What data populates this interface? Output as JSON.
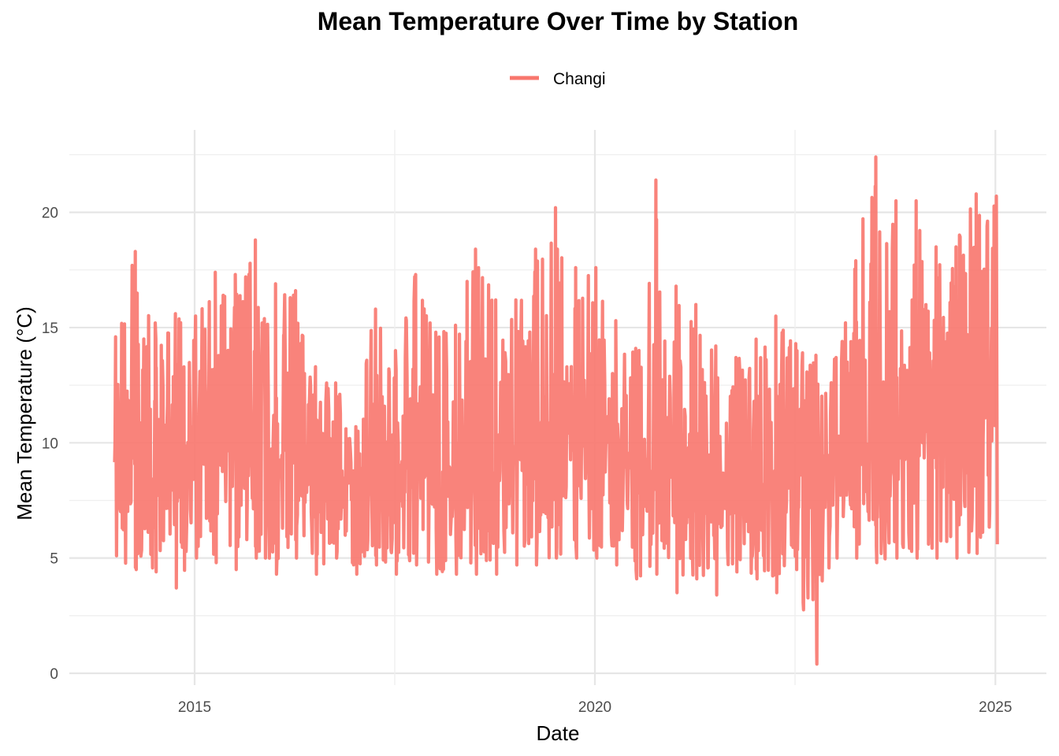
{
  "chart_data": {
    "type": "line",
    "title": "Mean Temperature Over Time by Station",
    "xlabel": "Date",
    "ylabel": "Mean Temperature (°C)",
    "x_ticks": [
      "2015",
      "2020",
      "2025"
    ],
    "y_ticks": [
      "0",
      "5",
      "10",
      "15",
      "20"
    ],
    "ylim": [
      0,
      22.5
    ],
    "xlim": [
      "2013-11-01",
      "2025-03-01"
    ],
    "grid": true,
    "legend_position": "top",
    "series": [
      {
        "name": "Changi",
        "color": "#F8766D",
        "x": [
          "2014-01-01",
          "2014-04-01",
          "2014-07-01",
          "2014-10-01",
          "2015-01-01",
          "2015-04-01",
          "2015-07-01",
          "2015-10-01",
          "2016-01-01",
          "2016-04-01",
          "2016-07-01",
          "2016-10-01",
          "2017-01-01",
          "2017-04-01",
          "2017-07-01",
          "2017-10-01",
          "2018-01-01",
          "2018-04-01",
          "2018-07-01",
          "2018-10-01",
          "2019-01-01",
          "2019-04-01",
          "2019-07-01",
          "2019-10-01",
          "2020-01-01",
          "2020-04-01",
          "2020-07-01",
          "2020-10-01",
          "2021-01-01",
          "2021-04-01",
          "2021-07-01",
          "2021-10-01",
          "2022-01-01",
          "2022-04-01",
          "2022-07-01",
          "2022-10-01",
          "2023-01-01",
          "2023-04-01",
          "2023-07-01",
          "2023-10-01",
          "2024-01-01",
          "2024-04-01",
          "2024-07-01",
          "2024-10-01",
          "2025-01-01"
        ],
        "y": [
          9.5,
          10.5,
          8.5,
          9.0,
          10.0,
          11.5,
          10.5,
          9.5,
          9.0,
          9.5,
          8.0,
          8.5,
          7.5,
          8.0,
          8.5,
          9.0,
          8.5,
          9.0,
          8.0,
          8.5,
          9.5,
          10.5,
          11.0,
          10.0,
          10.5,
          10.0,
          9.0,
          8.5,
          9.5,
          8.5,
          8.0,
          8.5,
          8.0,
          8.5,
          8.0,
          7.5,
          8.5,
          9.5,
          10.5,
          11.0,
          10.5,
          11.5,
          10.5,
          10.0,
          12.0
        ],
        "y_min": [
          5.1,
          4.5,
          4.4,
          3.7,
          5.0,
          4.8,
          4.5,
          5.0,
          4.3,
          5.0,
          4.3,
          5.0,
          4.3,
          4.7,
          4.3,
          4.7,
          4.3,
          4.3,
          4.3,
          4.3,
          4.7,
          4.7,
          5.0,
          5.0,
          5.0,
          4.7,
          4.1,
          4.3,
          3.5,
          4.1,
          3.4,
          4.4,
          4.1,
          3.5,
          4.5,
          0.4,
          5.0,
          5.0,
          4.8,
          5.0,
          5.0,
          5.0,
          5.0,
          5.2,
          5.6
        ],
        "y_max": [
          14.6,
          18.3,
          15.2,
          15.6,
          15.5,
          17.4,
          17.3,
          18.8,
          16.9,
          16.6,
          13.3,
          12.6,
          10.7,
          15.8,
          14.0,
          17.3,
          14.8,
          15.1,
          18.4,
          16.2,
          16.2,
          18.4,
          20.2,
          17.6,
          17.6,
          15.3,
          14.1,
          21.4,
          16.8,
          16.0,
          14.2,
          13.7,
          14.5,
          15.5,
          14.3,
          13.8,
          13.7,
          17.9,
          22.4,
          20.5,
          20.5,
          18.5,
          18.5,
          20.8,
          20.7
        ]
      }
    ]
  }
}
